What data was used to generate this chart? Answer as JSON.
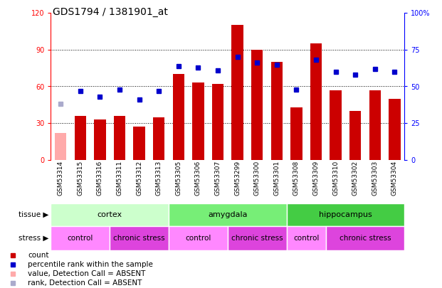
{
  "title": "GDS1794 / 1381901_at",
  "samples": [
    "GSM53314",
    "GSM53315",
    "GSM53316",
    "GSM53311",
    "GSM53312",
    "GSM53313",
    "GSM53305",
    "GSM53306",
    "GSM53307",
    "GSM53299",
    "GSM53300",
    "GSM53301",
    "GSM53308",
    "GSM53309",
    "GSM53310",
    "GSM53302",
    "GSM53303",
    "GSM53304"
  ],
  "counts": [
    22,
    36,
    33,
    36,
    27,
    35,
    70,
    63,
    62,
    110,
    90,
    80,
    43,
    95,
    57,
    40,
    57,
    50
  ],
  "counts_absent": [
    true,
    false,
    false,
    false,
    false,
    false,
    false,
    false,
    false,
    false,
    false,
    false,
    false,
    false,
    false,
    false,
    false,
    false
  ],
  "percentile_ranks": [
    38,
    47,
    43,
    48,
    41,
    47,
    64,
    63,
    61,
    70,
    66,
    65,
    48,
    68,
    60,
    58,
    62,
    60
  ],
  "percentile_absent": [
    true,
    false,
    false,
    false,
    false,
    false,
    false,
    false,
    false,
    false,
    false,
    false,
    false,
    false,
    false,
    false,
    false,
    false
  ],
  "ylim_left": [
    0,
    120
  ],
  "ylim_right": [
    0,
    100
  ],
  "yticks_left": [
    0,
    30,
    60,
    90,
    120
  ],
  "ytick_labels_left": [
    "0",
    "30",
    "60",
    "90",
    "120"
  ],
  "yticks_right_vals": [
    0,
    25,
    50,
    75,
    100
  ],
  "ytick_labels_right": [
    "0",
    "25",
    "50",
    "75",
    "100%"
  ],
  "bar_color_normal": "#cc0000",
  "bar_color_absent": "#ffaaaa",
  "dot_color_normal": "#0000cc",
  "dot_color_absent": "#aaaacc",
  "tissue_groups": [
    {
      "label": "cortex",
      "start": 0,
      "end": 5,
      "color": "#ccffcc"
    },
    {
      "label": "amygdala",
      "start": 6,
      "end": 11,
      "color": "#77ee77"
    },
    {
      "label": "hippocampus",
      "start": 12,
      "end": 17,
      "color": "#44cc44"
    }
  ],
  "stress_groups": [
    {
      "label": "control",
      "start": 0,
      "end": 2,
      "color": "#ff88ff"
    },
    {
      "label": "chronic stress",
      "start": 3,
      "end": 5,
      "color": "#dd44dd"
    },
    {
      "label": "control",
      "start": 6,
      "end": 8,
      "color": "#ff88ff"
    },
    {
      "label": "chronic stress",
      "start": 9,
      "end": 11,
      "color": "#dd44dd"
    },
    {
      "label": "control",
      "start": 12,
      "end": 13,
      "color": "#ff88ff"
    },
    {
      "label": "chronic stress",
      "start": 14,
      "end": 17,
      "color": "#dd44dd"
    }
  ],
  "bg_color": "#d8d8d8",
  "plot_bg": "#ffffff",
  "label_fontsize": 6.5,
  "tick_fontsize": 7,
  "title_fontsize": 10
}
